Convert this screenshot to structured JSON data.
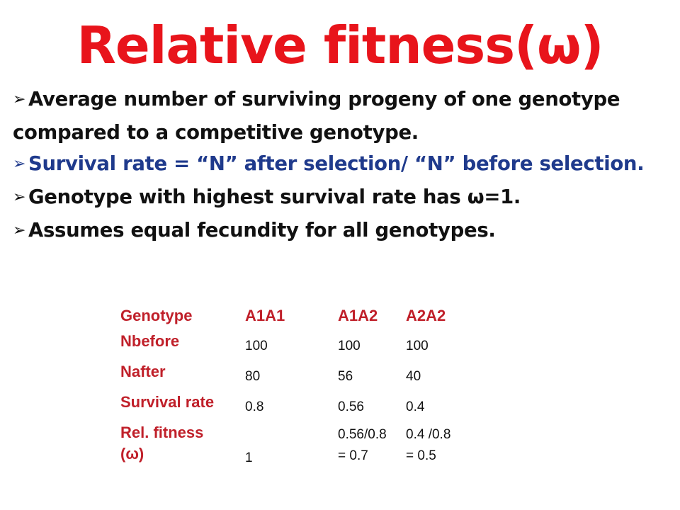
{
  "title": "Relative fitness(ω)",
  "bullets": [
    {
      "mark": "➢",
      "line1": "Average number of surviving progeny of one   genotype",
      "line2": "compared to a competitive  genotype."
    },
    {
      "mark": "➢",
      "text": "Survival rate = “N” after selection/ “N” before selection."
    },
    {
      "mark": "➢",
      "text": "Genotype with highest survival rate has ω=1."
    },
    {
      "mark": "➢",
      "text": "Assumes equal fecundity for all genotypes."
    }
  ],
  "table": {
    "headers": [
      "Genotype",
      "A1A1",
      "A1A2",
      "A2A2"
    ],
    "rows": [
      {
        "label": "Nbefore",
        "values": [
          "100",
          "100",
          "100"
        ]
      },
      {
        "label": "Nafter",
        "values": [
          "80",
          "56",
          "40"
        ]
      },
      {
        "label": "Survival rate",
        "values": [
          "0.8",
          "0.56",
          "0.4"
        ]
      }
    ],
    "fitness": {
      "label_line1": "Rel. fitness",
      "label_line2": "(ω)",
      "a1a1": "1",
      "a1a2_line1": "0.56/0.8",
      "a1a2_line2": "= 0.7",
      "a2a2_line1": "0.4 /0.8",
      "a2a2_line2": "= 0.5"
    }
  }
}
